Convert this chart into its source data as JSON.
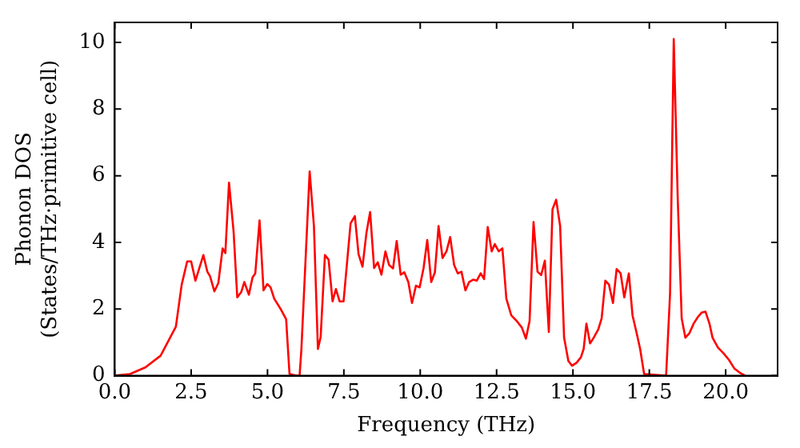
{
  "chart_data": {
    "type": "line",
    "xlabel": "Frequency (THz)",
    "ylabel": "Phonon DOS\n(States/THz·primitive cell)",
    "xlim": [
      0,
      21.7
    ],
    "ylim": [
      0,
      10.6
    ],
    "xticks": [
      {
        "value": 0,
        "label": "0.0"
      },
      {
        "value": 2.5,
        "label": "2.5"
      },
      {
        "value": 5,
        "label": "5.0"
      },
      {
        "value": 7.5,
        "label": "7.5"
      },
      {
        "value": 10,
        "label": "10.0"
      },
      {
        "value": 12.5,
        "label": "12.5"
      },
      {
        "value": 15,
        "label": "15.0"
      },
      {
        "value": 17.5,
        "label": "17.5"
      },
      {
        "value": 20,
        "label": "20.0"
      }
    ],
    "yticks": [
      0,
      2,
      4,
      6,
      8,
      10
    ],
    "grid": false,
    "legend": false,
    "marker": "none",
    "line_style": "solid",
    "series": [
      {
        "color": "#ff0000",
        "x": [
          0,
          0.5,
          1,
          1.5,
          2,
          2.19,
          2.37,
          2.5,
          2.64,
          2.9,
          3.03,
          3.12,
          3.26,
          3.39,
          3.53,
          3.62,
          3.74,
          3.89,
          4.01,
          4.14,
          4.24,
          4.39,
          4.51,
          4.6,
          4.74,
          4.87,
          4.99,
          5.1,
          5.22,
          5.45,
          5.61,
          5.72,
          5.94,
          6.05,
          6.11,
          6.38,
          6.52,
          6.65,
          6.74,
          6.88,
          7,
          7.13,
          7.24,
          7.36,
          7.49,
          7.72,
          7.86,
          7.98,
          8.11,
          8.24,
          8.36,
          8.49,
          8.61,
          8.73,
          8.86,
          8.98,
          9.11,
          9.23,
          9.36,
          9.48,
          9.61,
          9.73,
          9.86,
          9.98,
          10.11,
          10.23,
          10.36,
          10.48,
          10.6,
          10.73,
          10.86,
          10.98,
          11.11,
          11.23,
          11.35,
          11.48,
          11.6,
          11.73,
          11.85,
          11.98,
          12.09,
          12.21,
          12.34,
          12.44,
          12.57,
          12.69,
          12.82,
          12.98,
          13.16,
          13.33,
          13.46,
          13.58,
          13.71,
          13.84,
          13.96,
          14.08,
          14.21,
          14.33,
          14.45,
          14.58,
          14.71,
          14.85,
          14.97,
          15.12,
          15.26,
          15.35,
          15.44,
          15.56,
          15.68,
          15.83,
          15.94,
          16.06,
          16.18,
          16.31,
          16.43,
          16.56,
          16.68,
          16.83,
          16.95,
          17.07,
          17.2,
          17.33,
          18.05,
          18.18,
          18.3,
          18.43,
          18.56,
          18.68,
          18.81,
          18.95,
          19.09,
          19.21,
          19.34,
          19.47,
          19.57,
          19.75,
          19.93,
          20.11,
          20.28,
          20.46,
          20.64
        ],
        "values": [
          0,
          0.05,
          0.25,
          0.6,
          1.47,
          2.73,
          3.43,
          3.43,
          2.85,
          3.62,
          3.12,
          2.98,
          2.53,
          2.78,
          3.82,
          3.68,
          5.79,
          4.32,
          2.35,
          2.51,
          2.81,
          2.43,
          2.95,
          3.07,
          4.66,
          2.56,
          2.75,
          2.65,
          2.31,
          1.97,
          1.69,
          0.05,
          0,
          0,
          0.8,
          6.13,
          4.49,
          0.8,
          1.16,
          3.62,
          3.48,
          2.23,
          2.6,
          2.23,
          2.23,
          4.57,
          4.79,
          3.65,
          3.27,
          4.29,
          4.91,
          3.23,
          3.4,
          3.03,
          3.73,
          3.32,
          3.22,
          4.04,
          3.03,
          3.1,
          2.81,
          2.18,
          2.7,
          2.65,
          3.23,
          4.07,
          2.81,
          3.1,
          4.49,
          3.53,
          3.73,
          4.16,
          3.32,
          3.07,
          3.12,
          2.56,
          2.81,
          2.88,
          2.85,
          3.07,
          2.9,
          4.46,
          3.73,
          3.95,
          3.73,
          3.82,
          2.31,
          1.81,
          1.64,
          1.44,
          1.11,
          1.64,
          4.61,
          3.12,
          3.02,
          3.45,
          1.31,
          4.99,
          5.28,
          4.49,
          1.14,
          0.44,
          0.3,
          0.39,
          0.55,
          0.8,
          1.56,
          0.97,
          1.14,
          1.39,
          1.72,
          2.85,
          2.73,
          2.18,
          3.2,
          3.07,
          2.35,
          3.07,
          1.81,
          1.34,
          0.8,
          0.05,
          0,
          2.48,
          10.1,
          5.33,
          1.72,
          1.14,
          1.27,
          1.56,
          1.76,
          1.89,
          1.92,
          1.56,
          1.14,
          0.84,
          0.67,
          0.47,
          0.22,
          0.09,
          0
        ]
      }
    ]
  }
}
